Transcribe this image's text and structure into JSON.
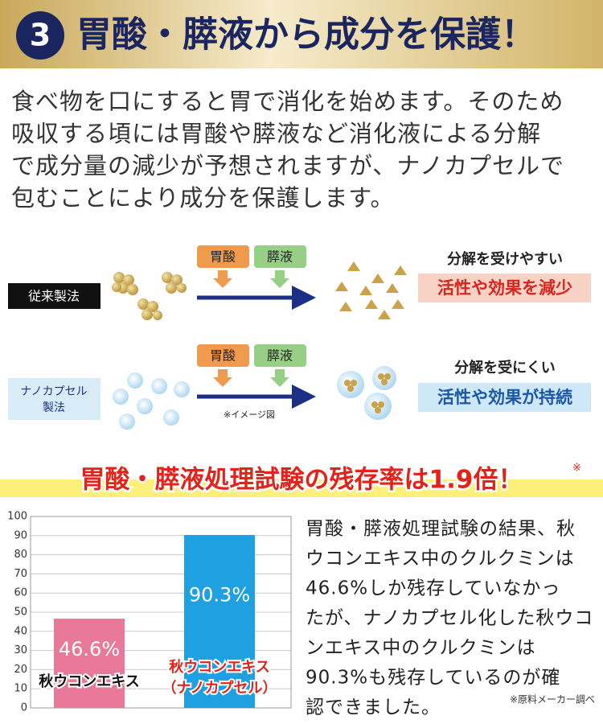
{
  "header": {
    "number": "3",
    "title": "胃酸・膵液から成分を保護！"
  },
  "intro": [
    "食べ物を口にすると胃で消化を始めます。そのため",
    "吸収する頃には胃酸や膵液など消化液による分解",
    "で成分量の減少が予想されますが、ナノカプセルで",
    "包むことにより成分を保護します。"
  ],
  "diagram": {
    "conventional": {
      "label": "従来製法",
      "acid": "胃酸",
      "pancreatic": "膵液",
      "note": "分解を受けやすい",
      "result": "活性や効果を減少"
    },
    "nano": {
      "label": [
        "ナノカプセル",
        "製法"
      ],
      "acid": "胃酸",
      "pancreatic": "膵液",
      "caption": "※イメージ図",
      "note": "分解を受にくい",
      "result": "活性や効果が持続"
    }
  },
  "headline": {
    "text": "胃酸・膵液処理試験の残存率は1.9倍！",
    "mark": "※"
  },
  "chart_data": {
    "type": "bar",
    "categories": [
      [
        "秋ウコンエキス"
      ],
      [
        "秋ウコンエキス",
        "（ナノカプセル）"
      ]
    ],
    "values": [
      46.6,
      90.3
    ],
    "value_labels": [
      "46.6%",
      "90.3%"
    ],
    "colors": [
      "#e8799a",
      "#1fa0e0"
    ],
    "ylim": [
      0,
      100
    ],
    "yticks": [
      0,
      10,
      20,
      30,
      40,
      50,
      60,
      70,
      80,
      90,
      100
    ],
    "grid": true
  },
  "result_text": [
    "胃酸・膵液処理試験の結果、秋",
    "ウコンエキス中のクルクミンは",
    "46.6%しか残存していなかっ",
    "たが、ナノカプセル化した秋ウコ",
    "ンエキス中のクルクミンは",
    "90.3%も残存しているのが確",
    "認できました。"
  ],
  "source": "※原料メーカー調べ"
}
